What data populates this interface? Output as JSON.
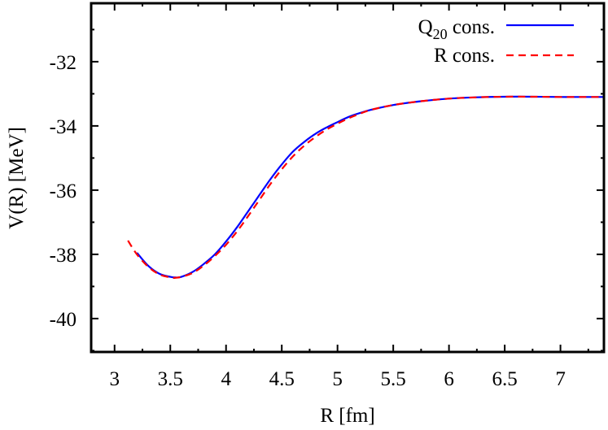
{
  "chart_data": {
    "type": "line",
    "title": "",
    "xlabel": "R [fm]",
    "ylabel": "V(R) [MeV]",
    "xlim": [
      2.79,
      7.39
    ],
    "ylim": [
      -41.04,
      -30.18
    ],
    "grid": false,
    "legend_position": "top-right",
    "x_ticks": [
      3,
      3.5,
      4,
      4.5,
      5,
      5.5,
      6,
      6.5,
      7
    ],
    "x_tick_labels": [
      "3",
      "3.5",
      "4",
      "4.5",
      "5",
      "5.5",
      "6",
      "6.5",
      "7"
    ],
    "x_minor_ticks": [
      3.25,
      3.75,
      4.25,
      4.75,
      5.25,
      5.75,
      6.25,
      6.75,
      7.25
    ],
    "y_ticks": [
      -40,
      -38,
      -36,
      -34,
      -32
    ],
    "y_tick_labels": [
      "-40",
      "-38",
      "-36",
      "-34",
      "-32"
    ],
    "y_minor_ticks": [
      -41,
      -39,
      -37,
      -35,
      -33,
      -31
    ],
    "series": [
      {
        "name": "Q20 cons.",
        "label_main": "Q",
        "label_sub": "20",
        "label_rest": " cons.",
        "color": "#0000ff",
        "style": "solid",
        "x": [
          3.2,
          3.3,
          3.4,
          3.5,
          3.55,
          3.6,
          3.7,
          3.8,
          3.9,
          4.0,
          4.1,
          4.2,
          4.3,
          4.4,
          4.5,
          4.6,
          4.7,
          4.8,
          4.9,
          5.0,
          5.1,
          5.2,
          5.3,
          5.5,
          5.75,
          6.0,
          6.25,
          6.5,
          6.75,
          7.0,
          7.2,
          7.39
        ],
        "y": [
          -37.95,
          -38.35,
          -38.6,
          -38.7,
          -38.72,
          -38.7,
          -38.55,
          -38.3,
          -38.0,
          -37.6,
          -37.15,
          -36.65,
          -36.15,
          -35.65,
          -35.2,
          -34.8,
          -34.5,
          -34.25,
          -34.05,
          -33.88,
          -33.72,
          -33.6,
          -33.5,
          -33.35,
          -33.23,
          -33.15,
          -33.11,
          -33.09,
          -33.09,
          -33.1,
          -33.1,
          -33.1
        ]
      },
      {
        "name": "R cons.",
        "label_main": "R",
        "label_sub": "",
        "label_rest": " cons.",
        "color": "#ff0000",
        "style": "dashed",
        "x": [
          3.12,
          3.2,
          3.3,
          3.4,
          3.5,
          3.55,
          3.6,
          3.7,
          3.8,
          3.9,
          4.0,
          4.1,
          4.2,
          4.3,
          4.4,
          4.5,
          4.6,
          4.7,
          4.8,
          4.9,
          5.0,
          5.1,
          5.2,
          5.3,
          5.5,
          5.75,
          6.0,
          6.25,
          6.5,
          6.75,
          7.0,
          7.2,
          7.39
        ],
        "y": [
          -37.57,
          -38.0,
          -38.38,
          -38.62,
          -38.72,
          -38.73,
          -38.7,
          -38.58,
          -38.35,
          -38.05,
          -37.7,
          -37.28,
          -36.8,
          -36.3,
          -35.8,
          -35.35,
          -34.95,
          -34.62,
          -34.35,
          -34.12,
          -33.93,
          -33.76,
          -33.62,
          -33.5,
          -33.35,
          -33.23,
          -33.15,
          -33.11,
          -33.09,
          -33.09,
          -33.1,
          -33.1,
          -33.1
        ]
      }
    ]
  },
  "colors": {
    "axis": "#000000",
    "background": "#ffffff",
    "q20": "#0000ff",
    "rcons": "#ff0000"
  }
}
